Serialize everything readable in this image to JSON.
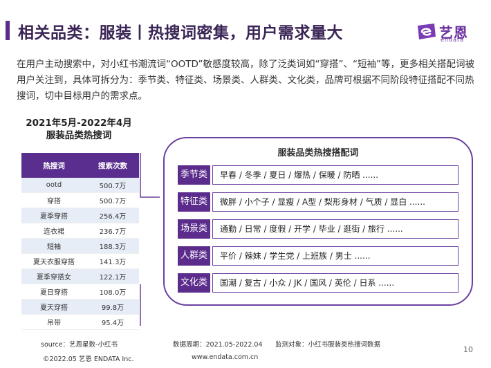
{
  "header": {
    "title": "相关品类：服装丨热搜词密集，用户需求量大",
    "logo_cn": "艺恩",
    "logo_en": "endata"
  },
  "intro": "在用户主动搜索中，对小红书潮流词“OOTD”敏感度较高，除了泛类词如“穿搭”、“短袖”等，更多相关搭配词被用户关注到，具体可拆分为：季节类、特征类、场景类、人群类、文化类，品牌可根据不同阶段特征搭配不同热搜词，切中目标用户的需求点。",
  "stat": {
    "period": "2021年5月-2022年4月",
    "subtitle": "服装品类热搜词",
    "columns": [
      "热搜词",
      "搜索次数"
    ],
    "rows": [
      {
        "kw": "ootd",
        "count": "500.7万"
      },
      {
        "kw": "穿搭",
        "count": "500.7万"
      },
      {
        "kw": "夏季穿搭",
        "count": "256.4万"
      },
      {
        "kw": "连衣裙",
        "count": "236.7万"
      },
      {
        "kw": "短袖",
        "count": "188.3万"
      },
      {
        "kw": "夏天衣服穿搭",
        "count": "141.3万"
      },
      {
        "kw": "夏季穿搭女",
        "count": "122.1万"
      },
      {
        "kw": "夏日穿搭",
        "count": "108.0万"
      },
      {
        "kw": "夏天穿搭",
        "count": "99.8万"
      },
      {
        "kw": "吊带",
        "count": "95.4万"
      }
    ]
  },
  "combo": {
    "title": "服装品类热搜搭配词",
    "rows": [
      {
        "tag": "季节类",
        "words": "早春 / 冬季 / 夏日 / 爆热 / 保暖 / 防晒 ......"
      },
      {
        "tag": "特征类",
        "words": "微胖 / 小个子 / 显瘦 / A型 / 梨形身材 / 气质 / 显白 ......"
      },
      {
        "tag": "场景类",
        "words": "通勤 / 日常 / 度假 / 开学 / 毕业 / 逛街 / 旅行 ......"
      },
      {
        "tag": "人群类",
        "words": "平价 / 辣妹 / 学生党 / 上班族 / 男士  ......"
      },
      {
        "tag": "文化类",
        "words": "国潮 / 复古 / 小众 / JK / 国风 / 英伦 / 日系 ......"
      }
    ]
  },
  "footer": {
    "source": "source：艺恩星数-小红书",
    "period": "数据周期：2021.05-2022.04",
    "target": "监测对象：小红书服装类热搜词数据",
    "copyright": "©2022.05 艺恩 ENDATA Inc.",
    "site": "www.endata.com.cn",
    "page": "10"
  },
  "colors": {
    "brand": "#5b2c8c",
    "table_alt": "#e6edf6"
  }
}
